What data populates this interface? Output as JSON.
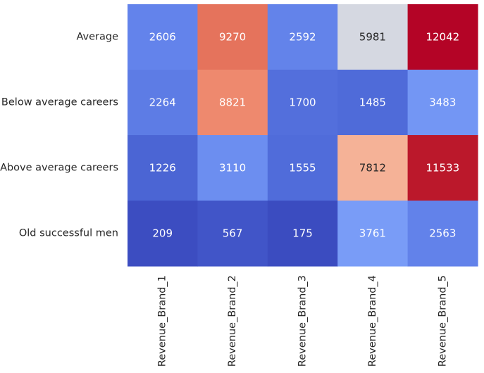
{
  "chart_data": {
    "type": "heatmap",
    "title": "",
    "xlabel": "",
    "ylabel": "",
    "rows": [
      "Average",
      "Below average careers",
      "Above average careers",
      "Old successful men"
    ],
    "columns": [
      "Revenue_Brand_1",
      "Revenue_Brand_2",
      "Revenue_Brand_3",
      "Revenue_Brand_4",
      "Revenue_Brand_5"
    ],
    "values": [
      [
        2606,
        9270,
        2592,
        5981,
        12042
      ],
      [
        2264,
        8821,
        1700,
        1485,
        3483
      ],
      [
        1226,
        3110,
        1555,
        7812,
        11533
      ],
      [
        209,
        567,
        175,
        3761,
        2563
      ]
    ],
    "colormap": "coolwarm",
    "vmin": 175,
    "vmax": 12042,
    "annotated": true,
    "colorbar": false
  }
}
